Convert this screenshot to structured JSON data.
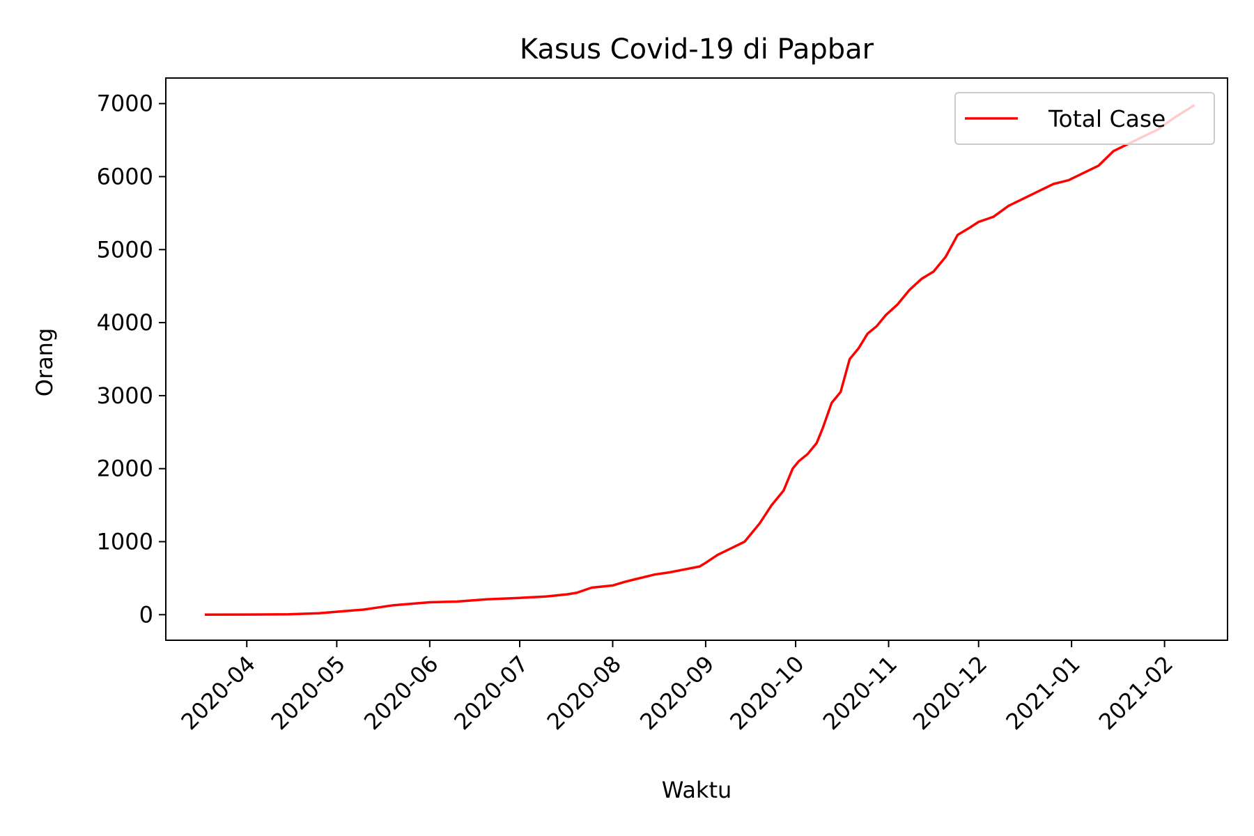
{
  "chart_data": {
    "type": "line",
    "title": "Kasus Covid-19 di Papbar",
    "xlabel": "Waktu",
    "ylabel": "Orang",
    "ylim": [
      -350,
      7350
    ],
    "xlim": [
      "2020-03-05",
      "2021-02-22"
    ],
    "yticks": [
      0,
      1000,
      2000,
      3000,
      4000,
      5000,
      6000,
      7000
    ],
    "xticks": [
      "2020-04",
      "2020-05",
      "2020-06",
      "2020-07",
      "2020-08",
      "2020-09",
      "2020-10",
      "2020-11",
      "2020-12",
      "2021-01",
      "2021-02"
    ],
    "grid": false,
    "legend_position": "top-right",
    "line_color": "#ff0000",
    "series": [
      {
        "name": "Total Case",
        "x": [
          "2020-03-18",
          "2020-04-01",
          "2020-04-15",
          "2020-04-25",
          "2020-05-01",
          "2020-05-10",
          "2020-05-15",
          "2020-05-20",
          "2020-06-01",
          "2020-06-10",
          "2020-06-20",
          "2020-07-01",
          "2020-07-10",
          "2020-07-17",
          "2020-07-20",
          "2020-07-25",
          "2020-08-01",
          "2020-08-05",
          "2020-08-08",
          "2020-08-15",
          "2020-08-20",
          "2020-08-25",
          "2020-08-30",
          "2020-09-01",
          "2020-09-05",
          "2020-09-10",
          "2020-09-14",
          "2020-09-19",
          "2020-09-23",
          "2020-09-27",
          "2020-09-30",
          "2020-10-02",
          "2020-10-05",
          "2020-10-08",
          "2020-10-10",
          "2020-10-13",
          "2020-10-16",
          "2020-10-19",
          "2020-10-22",
          "2020-10-25",
          "2020-10-28",
          "2020-10-31",
          "2020-11-04",
          "2020-11-08",
          "2020-11-12",
          "2020-11-16",
          "2020-11-20",
          "2020-11-24",
          "2020-11-28",
          "2020-12-01",
          "2020-12-06",
          "2020-12-11",
          "2020-12-16",
          "2020-12-21",
          "2020-12-26",
          "2020-12-31",
          "2021-01-05",
          "2021-01-10",
          "2021-01-15",
          "2021-01-20",
          "2021-01-25",
          "2021-01-30",
          "2021-02-04",
          "2021-02-11"
        ],
        "values": [
          0,
          2,
          5,
          20,
          40,
          70,
          100,
          130,
          170,
          180,
          210,
          230,
          250,
          280,
          300,
          370,
          400,
          450,
          480,
          550,
          580,
          620,
          660,
          710,
          820,
          920,
          1000,
          1250,
          1500,
          1700,
          2000,
          2100,
          2200,
          2350,
          2550,
          2900,
          3050,
          3500,
          3650,
          3850,
          3950,
          4100,
          4250,
          4450,
          4600,
          4700,
          4900,
          5200,
          5300,
          5380,
          5450,
          5600,
          5700,
          5800,
          5900,
          5950,
          6050,
          6150,
          6350,
          6450,
          6550,
          6650,
          6800,
          6980
        ]
      }
    ]
  }
}
